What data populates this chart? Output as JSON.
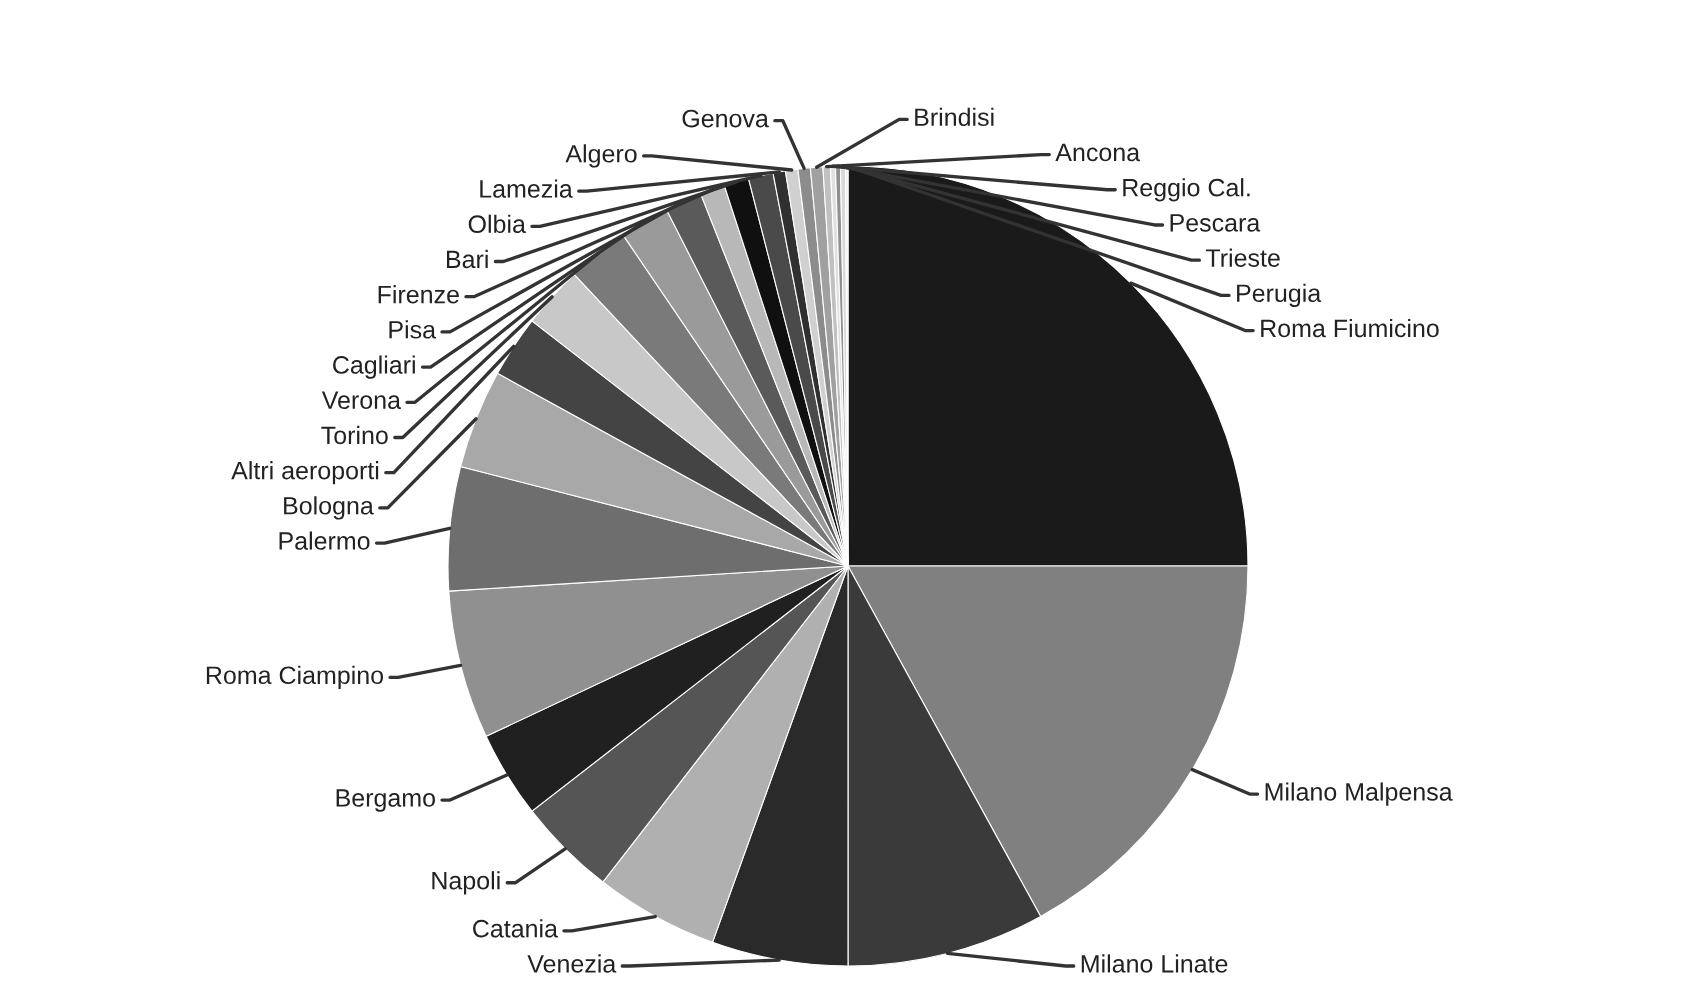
{
  "chart_data": {
    "type": "pie",
    "categories": [
      "Roma Fiumicino",
      "Milano Malpensa",
      "Milano Linate",
      "Venezia",
      "Catania",
      "Napoli",
      "Bergamo",
      "Roma Ciampino",
      "Palermo",
      "Bologna",
      "Altri aeroporti",
      "Torino",
      "Verona",
      "Cagliari",
      "Pisa",
      "Firenze",
      "Bari",
      "Olbia",
      "Lamezia",
      "Algero",
      "Genova",
      "Brindisi",
      "Ancona",
      "Reggio Cal.",
      "Pescara",
      "Trieste",
      "Perugia"
    ],
    "values": [
      25,
      17,
      8,
      5.5,
      5,
      4,
      3.5,
      6,
      5,
      4,
      2.5,
      2.5,
      2.5,
      2,
      1.5,
      1,
      1,
      1,
      0.5,
      0.5,
      0.5,
      0.5,
      0.3,
      0.2,
      0.2,
      0.2,
      0.1
    ],
    "colors": [
      "#1a1a1a",
      "#808080",
      "#3a3a3a",
      "#2a2a2a",
      "#b0b0b0",
      "#555555",
      "#202020",
      "#909090",
      "#6e6e6e",
      "#a8a8a8",
      "#444444",
      "#c8c8c8",
      "#7a7a7a",
      "#9a9a9a",
      "#5a5a5a",
      "#b8b8b8",
      "#101010",
      "#4a4a4a",
      "#303030",
      "#d0d0d0",
      "#8c8c8c",
      "#a0a0a0",
      "#c0c0c0",
      "#e0e0e0",
      "#909090",
      "#d8d8d8",
      "#f0f0f0"
    ]
  }
}
